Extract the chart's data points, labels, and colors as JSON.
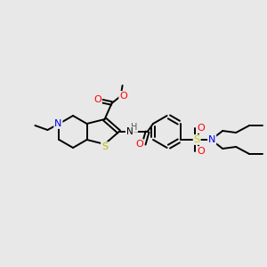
{
  "background_color": "#e8e8e8",
  "colors": {
    "C": "#000000",
    "N": "#0000ee",
    "O": "#ff0000",
    "S_thio": "#bbbb00",
    "S_sulf": "#cccc00",
    "H": "#555555"
  },
  "figsize": [
    3.0,
    3.0
  ],
  "dpi": 100
}
